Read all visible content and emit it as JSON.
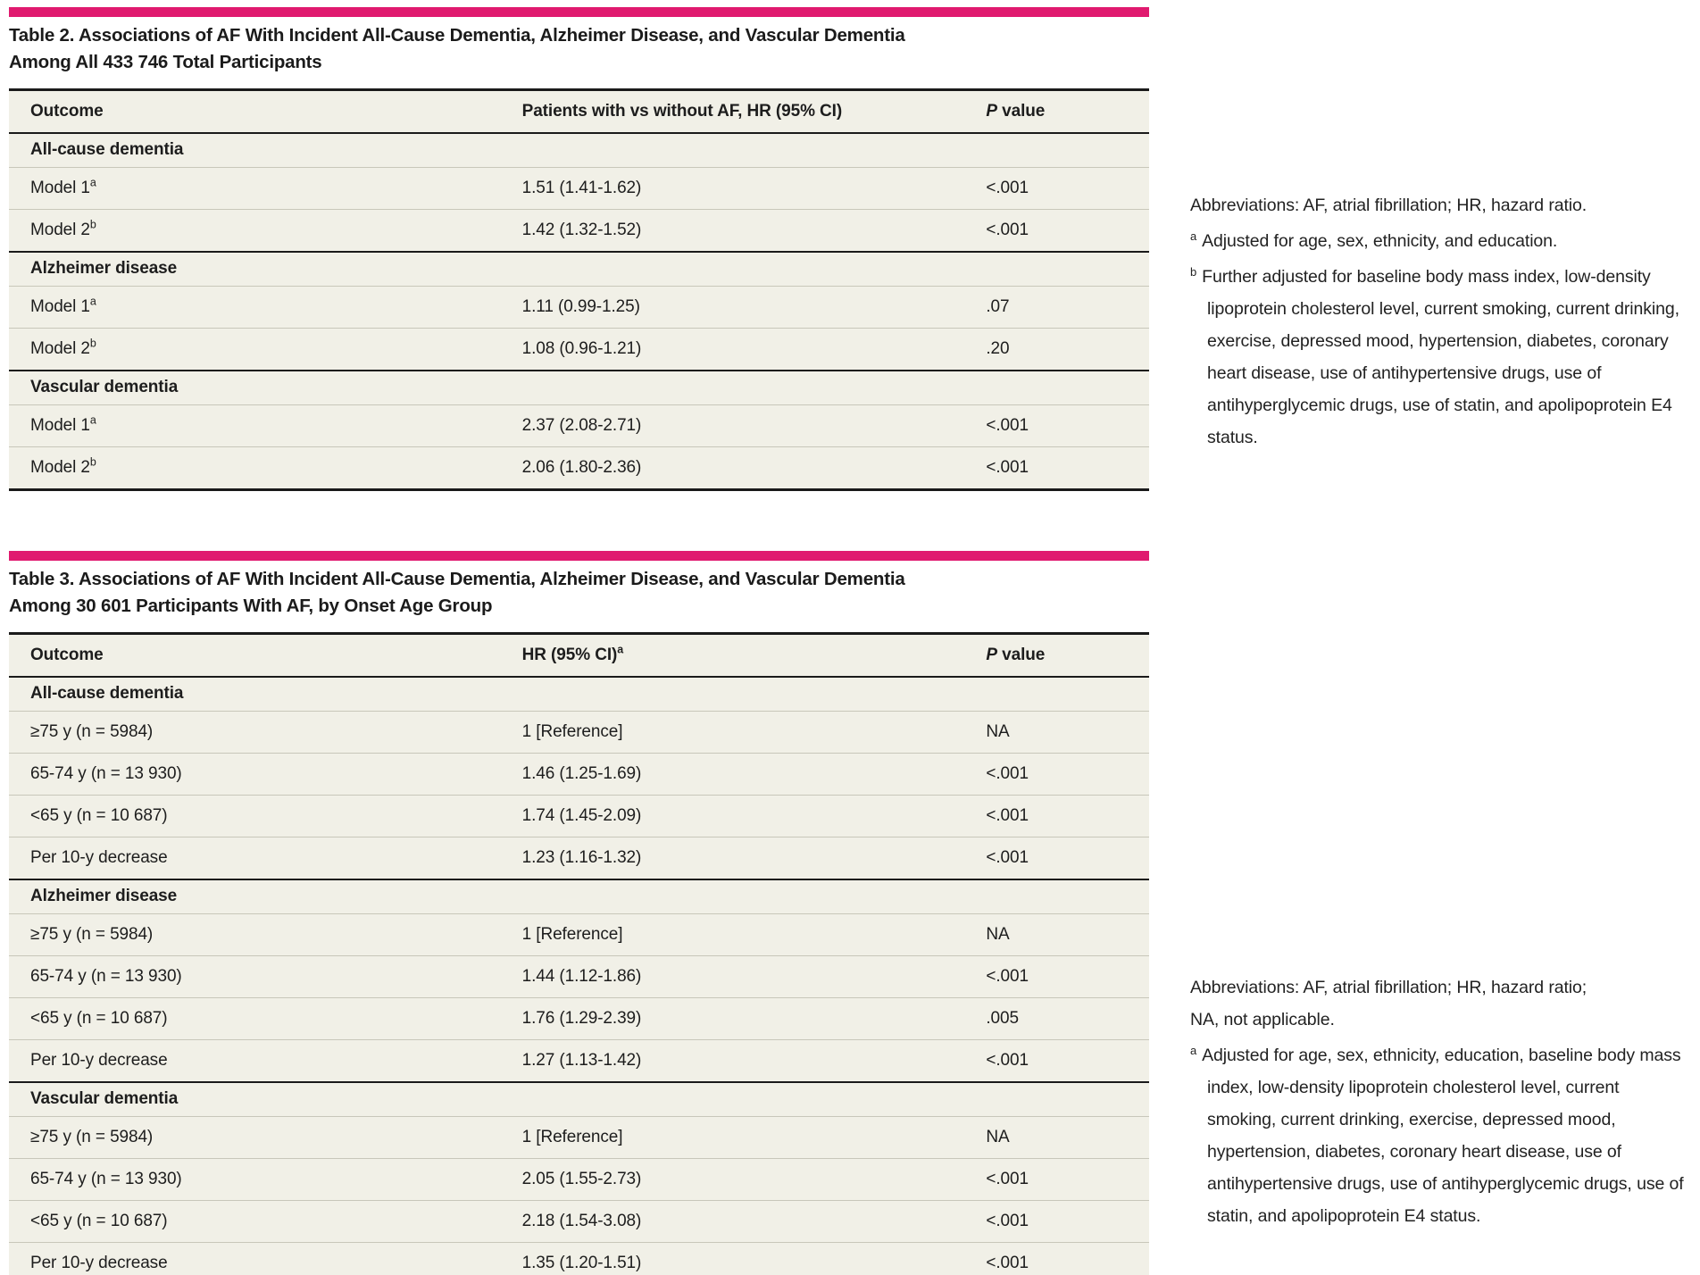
{
  "colors": {
    "accent": "#e01a6f",
    "page_bg": "#ffffff",
    "table_bg": "#f1f0e7",
    "rule": "#1a1a1a",
    "thin_rule": "#c8c7ba",
    "text": "#1d1d1d"
  },
  "tables": [
    {
      "title": "Table 2. Associations of AF With Incident All-Cause Dementia, Alzheimer Disease, and Vascular Dementia Among All 433 746 Total Participants",
      "columns": [
        {
          "text": "Outcome"
        },
        {
          "text": "Patients with vs without AF, HR (95% CI)"
        },
        {
          "italic": "P",
          "text": " value"
        }
      ],
      "sections": [
        {
          "label": "All-cause dementia",
          "rows": [
            {
              "label": "Model 1",
              "sup": "a",
              "hr": "1.51 (1.41-1.62)",
              "p": "<.001"
            },
            {
              "label": "Model 2",
              "sup": "b",
              "hr": "1.42 (1.32-1.52)",
              "p": "<.001"
            }
          ]
        },
        {
          "label": "Alzheimer disease",
          "rows": [
            {
              "label": "Model 1",
              "sup": "a",
              "hr": "1.11 (0.99-1.25)",
              "p": ".07"
            },
            {
              "label": "Model 2",
              "sup": "b",
              "hr": "1.08 (0.96-1.21)",
              "p": ".20"
            }
          ]
        },
        {
          "label": "Vascular dementia",
          "rows": [
            {
              "label": "Model 1",
              "sup": "a",
              "hr": "2.37 (2.08-2.71)",
              "p": "<.001"
            },
            {
              "label": "Model 2",
              "sup": "b",
              "hr": "2.06 (1.80-2.36)",
              "p": "<.001"
            }
          ]
        }
      ],
      "notes": [
        {
          "marker": "",
          "text": "Abbreviations: AF, atrial fibrillation; HR, hazard ratio."
        },
        {
          "marker": "a",
          "text": "Adjusted for age, sex, ethnicity, and education."
        },
        {
          "marker": "b",
          "text": "Further adjusted for baseline body mass index, low-density lipoprotein cholesterol level, current smoking, current drinking, exercise, depressed mood, hypertension, diabetes, coronary heart disease, use of antihypertensive drugs, use of antihyperglycemic drugs, use of statin, and apolipoprotein E4 status."
        }
      ]
    },
    {
      "title": "Table 3. Associations of AF With Incident All-Cause Dementia, Alzheimer Disease, and Vascular Dementia Among 30 601 Participants With AF, by Onset Age Group",
      "columns": [
        {
          "text": "Outcome"
        },
        {
          "text": "HR (95% CI)",
          "sup": "a"
        },
        {
          "italic": "P",
          "text": " value"
        }
      ],
      "sections": [
        {
          "label": "All-cause dementia",
          "rows": [
            {
              "label": "≥75 y (n = 5984)",
              "sup": "",
              "hr": "1 [Reference]",
              "p": "NA"
            },
            {
              "label": "65-74 y (n = 13 930)",
              "sup": "",
              "hr": "1.46 (1.25-1.69)",
              "p": "<.001"
            },
            {
              "label": "<65 y (n = 10 687)",
              "sup": "",
              "hr": "1.74 (1.45-2.09)",
              "p": "<.001"
            },
            {
              "label": "Per 10-y decrease",
              "sup": "",
              "hr": "1.23 (1.16-1.32)",
              "p": "<.001"
            }
          ]
        },
        {
          "label": "Alzheimer disease",
          "rows": [
            {
              "label": "≥75 y (n = 5984)",
              "sup": "",
              "hr": "1 [Reference]",
              "p": "NA"
            },
            {
              "label": "65-74 y (n = 13 930)",
              "sup": "",
              "hr": "1.44 (1.12-1.86)",
              "p": "<.001"
            },
            {
              "label": "<65 y (n = 10 687)",
              "sup": "",
              "hr": "1.76 (1.29-2.39)",
              "p": ".005"
            },
            {
              "label": "Per 10-y decrease",
              "sup": "",
              "hr": "1.27 (1.13-1.42)",
              "p": "<.001"
            }
          ]
        },
        {
          "label": "Vascular dementia",
          "rows": [
            {
              "label": "≥75 y (n = 5984)",
              "sup": "",
              "hr": "1 [Reference]",
              "p": "NA"
            },
            {
              "label": "65-74 y (n = 13 930)",
              "sup": "",
              "hr": "2.05 (1.55-2.73)",
              "p": "<.001"
            },
            {
              "label": "<65 y (n = 10 687)",
              "sup": "",
              "hr": "2.18 (1.54-3.08)",
              "p": "<.001"
            },
            {
              "label": "Per 10-y decrease",
              "sup": "",
              "hr": "1.35 (1.20-1.51)",
              "p": "<.001"
            }
          ]
        }
      ],
      "notes": [
        {
          "marker": "",
          "text": "Abbreviations: AF, atrial fibrillation; HR, hazard ratio;\nNA, not applicable."
        },
        {
          "marker": "a",
          "text": "Adjusted for age, sex, ethnicity, education, baseline body mass index, low-density lipoprotein cholesterol level, current smoking, current drinking, exercise, depressed mood, hypertension, diabetes, coronary heart disease, use of antihypertensive drugs, use of antihyperglycemic drugs, use of statin, and apolipoprotein E4 status."
        }
      ]
    }
  ]
}
